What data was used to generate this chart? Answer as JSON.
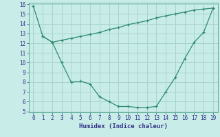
{
  "xlabel": "Humidex (Indice chaleur)",
  "line1_x": [
    0,
    1,
    2,
    3,
    4,
    5,
    6,
    7,
    8,
    9,
    10,
    11,
    12,
    13,
    14,
    15,
    16,
    17,
    18,
    19
  ],
  "line1_y": [
    15.8,
    12.7,
    12.1,
    10.0,
    8.0,
    8.1,
    7.8,
    6.5,
    6.0,
    5.5,
    5.5,
    5.4,
    5.4,
    5.5,
    7.0,
    8.5,
    10.4,
    12.1,
    13.1,
    15.6
  ],
  "line2_x": [
    1,
    2,
    3,
    4,
    5,
    6,
    7,
    8,
    9,
    10,
    11,
    12,
    13,
    14,
    15,
    16,
    17,
    18,
    19
  ],
  "line2_y": [
    12.7,
    12.1,
    12.3,
    12.5,
    12.7,
    12.9,
    13.1,
    13.4,
    13.6,
    13.9,
    14.1,
    14.3,
    14.6,
    14.8,
    15.0,
    15.2,
    15.4,
    15.5,
    15.6
  ],
  "line_color": "#2e8b6e",
  "bg_color": "#c8ece8",
  "grid_color": "#aad4ce",
  "ylim": [
    5,
    16
  ],
  "xlim": [
    -0.5,
    19.5
  ],
  "yticks": [
    5,
    6,
    7,
    8,
    9,
    10,
    11,
    12,
    13,
    14,
    15,
    16
  ],
  "xticks": [
    0,
    1,
    2,
    3,
    4,
    5,
    6,
    7,
    8,
    9,
    10,
    11,
    12,
    13,
    14,
    15,
    16,
    17,
    18,
    19
  ],
  "tick_fontsize": 5.5,
  "xlabel_fontsize": 6.5,
  "tick_color": "#333388",
  "xlabel_color": "#333388"
}
